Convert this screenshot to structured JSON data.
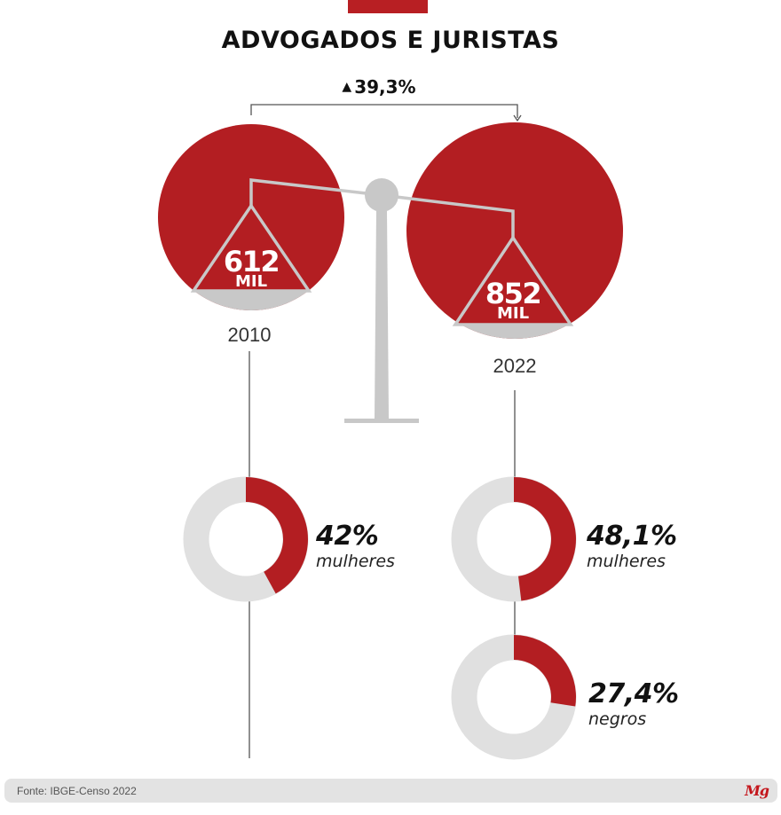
{
  "title": "ADVOGADOS E JURISTAS",
  "growth": {
    "symbol": "▲",
    "value": "39,3%"
  },
  "colors": {
    "accent": "#b31e22",
    "neutral": "#c8c8c8",
    "ring": "#e0e0e0",
    "line": "#555555"
  },
  "chart_data": [
    {
      "type": "bubble",
      "title": "ADVOGADOS E JURISTAS",
      "categories": [
        "2010",
        "2022"
      ],
      "values": [
        612,
        852
      ],
      "value_labels": [
        "612",
        "852"
      ],
      "unit": "MIL",
      "change_label": "39,3%"
    },
    {
      "type": "donut",
      "year": "2010",
      "series": [
        {
          "label": "mulheres",
          "value": 42,
          "value_label": "42%"
        }
      ]
    },
    {
      "type": "donut",
      "year": "2022",
      "series": [
        {
          "label": "mulheres",
          "value": 48.1,
          "value_label": "48,1%"
        },
        {
          "label": "negros",
          "value": 27.4,
          "value_label": "27,4%"
        }
      ]
    }
  ],
  "footer": {
    "source": "Fonte: IBGE-Censo 2022",
    "logo": "Mg"
  }
}
